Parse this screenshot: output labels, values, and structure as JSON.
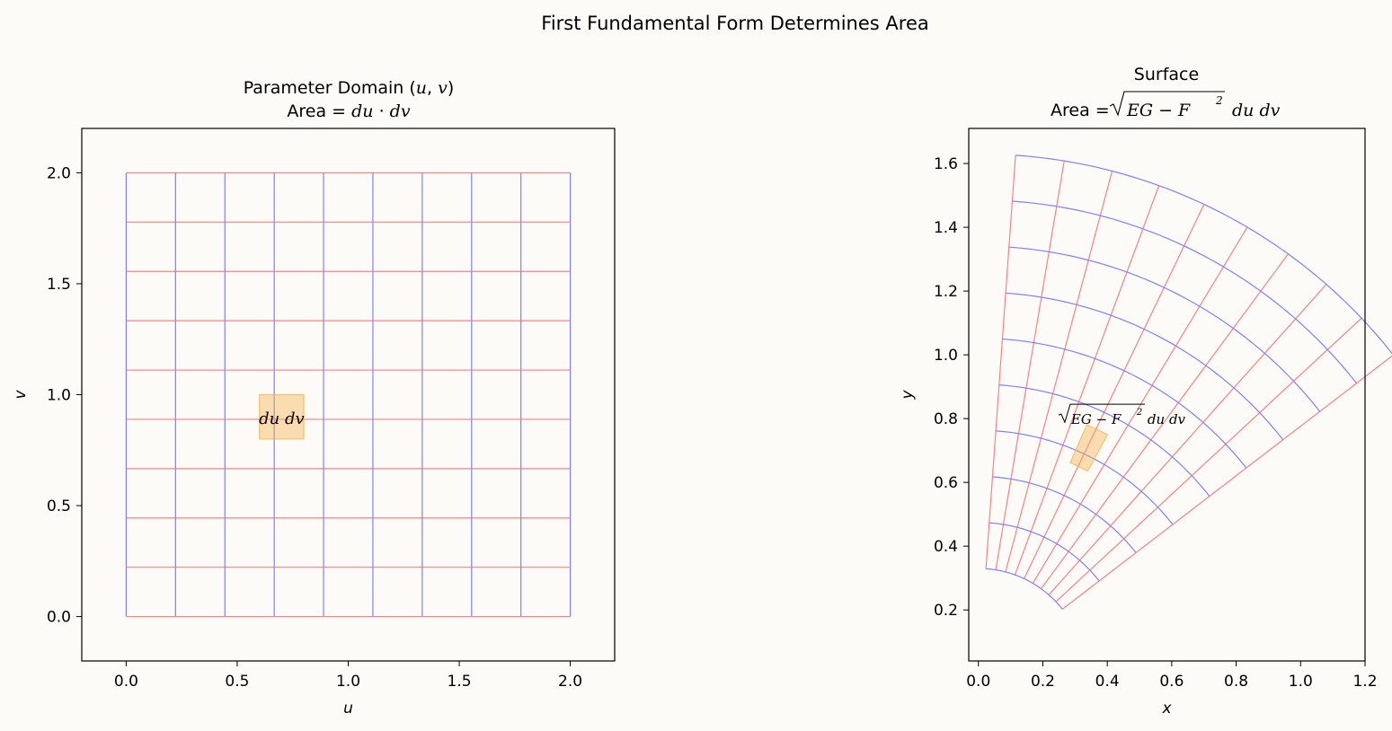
{
  "figure": {
    "suptitle": "First Fundamental Form Determines Area",
    "background": "#fcfbf8"
  },
  "chart_data": [
    {
      "type": "line",
      "panel": "parameter-domain",
      "title_line1": "Parameter Domain (u, v)",
      "title_line2": "Area = du · dv",
      "xlabel": "u",
      "ylabel": "v",
      "xlim": [
        -0.2,
        2.2
      ],
      "ylim": [
        -0.2,
        2.2
      ],
      "xticks": [
        "0.0",
        "0.5",
        "1.0",
        "1.5",
        "2.0"
      ],
      "yticks": [
        "0.0",
        "0.5",
        "1.0",
        "1.5",
        "2.0"
      ],
      "u_grid": [
        0,
        0.2222,
        0.4444,
        0.6667,
        0.8889,
        1.1111,
        1.3333,
        1.5556,
        1.7778,
        2.0
      ],
      "v_grid": [
        0,
        0.2222,
        0.4444,
        0.6667,
        0.8889,
        1.1111,
        1.3333,
        1.5556,
        1.7778,
        2.0
      ],
      "u_line_color": "#8080ff",
      "v_line_color": "#ff8080",
      "patch": {
        "u": [
          0.6,
          0.8
        ],
        "v": [
          0.8,
          1.0
        ],
        "color": "#f5b041"
      },
      "patch_label": "du dv",
      "grid": false
    },
    {
      "type": "line",
      "panel": "surface",
      "title_line1": "Surface",
      "title_line2": "Area = √(EG − F²) du dv",
      "xlabel": "x",
      "ylabel": "y",
      "xlim": [
        -0.03,
        1.2
      ],
      "ylim": [
        0.04,
        1.71
      ],
      "xticks": [
        0.0,
        0.2,
        0.4,
        0.6,
        0.8,
        1.0,
        1.2
      ],
      "yticks": [
        0.2,
        0.4,
        0.6,
        0.8,
        1.0,
        1.2,
        1.4,
        1.6
      ],
      "xtick_labels": [
        "0.0",
        "0.2",
        "0.4",
        "0.6",
        "0.8",
        "1.0",
        "1.2"
      ],
      "ytick_labels": [
        "0.2",
        "0.4",
        "0.6",
        "0.8",
        "1.0",
        "1.2",
        "1.4",
        "1.6"
      ],
      "map": "x = (0.33 + 0.65u)·cos(1.5 − 0.42v), y = (0.33 + 0.65u)·sin(1.5 − 0.42v)",
      "u_grid": [
        0,
        0.2222,
        0.4444,
        0.6667,
        0.8889,
        1.1111,
        1.3333,
        1.5556,
        1.7778,
        2.0
      ],
      "v_grid": [
        0,
        0.2222,
        0.4444,
        0.6667,
        0.8889,
        1.1111,
        1.3333,
        1.5556,
        1.7778,
        2.0
      ],
      "u_line_color": "#8080ff",
      "v_line_color": "#ff8080",
      "patch": {
        "u": [
          0.6,
          0.8
        ],
        "v": [
          0.8,
          1.0
        ],
        "color": "#f5b041"
      },
      "patch_label": "√(EG − F²) du dv",
      "grid": false
    }
  ]
}
